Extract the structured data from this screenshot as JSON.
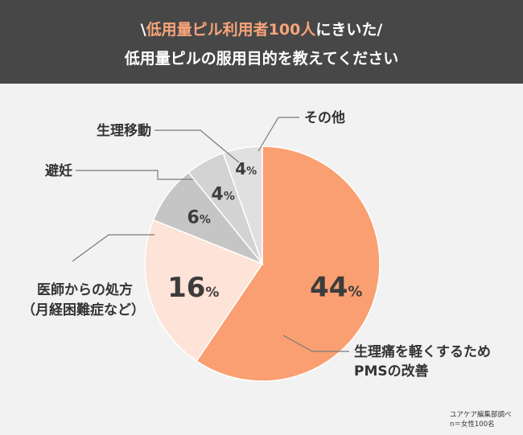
{
  "header": {
    "slash_open": "\\",
    "highlight": "低用量ピル利用者100人",
    "line1_rest": "にきいた",
    "slash_close": "/",
    "line2": "低用量ピルの服用目的を教えてください"
  },
  "chart_data": {
    "type": "pie",
    "title": "低用量ピルの服用目的を教えてください",
    "series": [
      {
        "label": "生理痛を軽くするため",
        "label2": "PMSの改善",
        "value": 44,
        "color": "#f99f71"
      },
      {
        "label": "医師からの処方",
        "label2": "（月経困難症など）",
        "value": 16,
        "color": "#fde3d8"
      },
      {
        "label": "避妊",
        "value": 6,
        "color": "#c5c5c5"
      },
      {
        "label": "生理移動",
        "value": 4,
        "color": "#d3d3d3"
      },
      {
        "label": "その他",
        "value": 4,
        "color": "#e0e0e0"
      }
    ],
    "unit": "%",
    "legend": "none"
  },
  "footer": {
    "source": "ユアケア編集部調べ",
    "sample": "n＝女性100名"
  }
}
